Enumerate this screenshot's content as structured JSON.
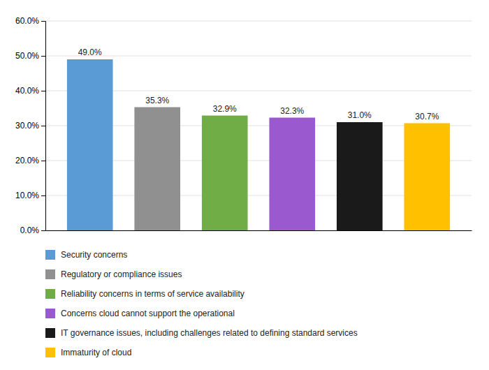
{
  "chart_data": {
    "type": "bar",
    "categories": [
      "Security concerns",
      "Regulatory or compliance issues",
      "Reliability concerns in terms of service availability",
      "Concerns cloud cannot support the operational",
      "IT governance issues, including challenges related to defining standard services",
      "Immaturity of cloud"
    ],
    "values": [
      49.0,
      35.3,
      32.9,
      32.3,
      31.0,
      30.7
    ],
    "value_labels": [
      "49.0%",
      "35.3%",
      "32.9%",
      "32.3%",
      "31.0%",
      "30.7%"
    ],
    "colors": [
      "#5B9BD5",
      "#909090",
      "#70AD47",
      "#9B59D0",
      "#1a1a1a",
      "#FFC000"
    ],
    "ylim": [
      0,
      60
    ],
    "yticks": [
      {
        "value": 0,
        "label": "0.0%"
      },
      {
        "value": 10,
        "label": "10.0%"
      },
      {
        "value": 20,
        "label": "20.0%"
      },
      {
        "value": 30,
        "label": "30.0%"
      },
      {
        "value": 40,
        "label": "40.0%"
      },
      {
        "value": 50,
        "label": "50.0%"
      },
      {
        "value": 60,
        "label": "60.0%"
      }
    ],
    "grid": true,
    "data_labels": true,
    "tick_labels": "y",
    "legend": "bottom"
  }
}
